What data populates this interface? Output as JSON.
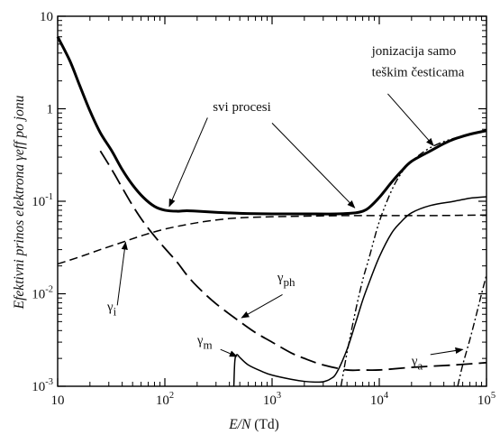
{
  "chart_data": {
    "type": "line",
    "title": "",
    "xlabel": {
      "main": "E/N",
      "unit": " (Td)"
    },
    "ylabel": "Efektivni prinos elektrona γeff po jonu",
    "xscale": "log",
    "yscale": "log",
    "xlim": [
      10,
      100000
    ],
    "ylim": [
      0.001,
      10
    ],
    "x_ticks": [
      {
        "value": 10,
        "base": "10",
        "exp": ""
      },
      {
        "value": 100,
        "base": "10",
        "exp": "2"
      },
      {
        "value": 1000,
        "base": "10",
        "exp": "3"
      },
      {
        "value": 10000,
        "base": "10",
        "exp": "4"
      },
      {
        "value": 100000,
        "base": "10",
        "exp": "5"
      }
    ],
    "y_ticks": [
      {
        "value": 10,
        "base": "10",
        "exp": ""
      },
      {
        "value": 1,
        "base": "1",
        "exp": ""
      },
      {
        "value": 0.1,
        "base": "10",
        "exp": "-1"
      },
      {
        "value": 0.01,
        "base": "10",
        "exp": "-2"
      },
      {
        "value": 0.001,
        "base": "10",
        "exp": "-3"
      }
    ],
    "series": [
      {
        "name": "svi procesi",
        "style": "solid-thick",
        "x": [
          10,
          13,
          16,
          20,
          25,
          32,
          40,
          50,
          63,
          80,
          100,
          130,
          160,
          200,
          300,
          500,
          1000,
          2000,
          4000,
          6000,
          7000,
          8000,
          10000,
          13000,
          16000,
          20000,
          30000,
          40000,
          50000,
          70000,
          100000
        ],
        "y": [
          6,
          3.3,
          1.8,
          0.95,
          0.55,
          0.35,
          0.22,
          0.15,
          0.11,
          0.088,
          0.08,
          0.078,
          0.079,
          0.078,
          0.076,
          0.074,
          0.073,
          0.073,
          0.073,
          0.075,
          0.078,
          0.085,
          0.11,
          0.16,
          0.21,
          0.27,
          0.35,
          0.42,
          0.47,
          0.53,
          0.58
        ]
      },
      {
        "name": "γph",
        "style": "long-dash",
        "x": [
          25,
          32,
          40,
          50,
          63,
          80,
          100,
          130,
          160,
          200,
          300,
          500,
          700,
          1000,
          1500,
          2000,
          3000,
          5000,
          7000,
          10000,
          20000,
          50000,
          100000
        ],
        "y": [
          0.35,
          0.22,
          0.14,
          0.09,
          0.06,
          0.042,
          0.031,
          0.022,
          0.016,
          0.012,
          0.0078,
          0.005,
          0.0038,
          0.003,
          0.0023,
          0.002,
          0.0017,
          0.0015,
          0.0015,
          0.0015,
          0.0016,
          0.0017,
          0.0018
        ]
      },
      {
        "name": "γi",
        "style": "dash",
        "x": [
          10,
          16,
          25,
          40,
          63,
          100,
          160,
          250,
          400,
          630,
          1000,
          2000,
          5000,
          10000,
          30000,
          100000
        ],
        "y": [
          0.021,
          0.025,
          0.03,
          0.036,
          0.043,
          0.05,
          0.056,
          0.061,
          0.065,
          0.067,
          0.068,
          0.069,
          0.07,
          0.07,
          0.07,
          0.071
        ]
      },
      {
        "name": "γm",
        "style": "solid-thin",
        "x": [
          440,
          450,
          470,
          500,
          600,
          800,
          1000,
          1500,
          2000,
          2500,
          3000,
          3500,
          4000,
          5000,
          6000,
          7000,
          8000,
          10000,
          13000,
          16000,
          20000,
          30000,
          50000,
          70000,
          100000
        ],
        "y": [
          0.00101,
          0.0019,
          0.0022,
          0.00205,
          0.0017,
          0.00145,
          0.00132,
          0.00119,
          0.00113,
          0.00111,
          0.00112,
          0.0012,
          0.0014,
          0.0025,
          0.0048,
          0.0085,
          0.013,
          0.025,
          0.045,
          0.06,
          0.075,
          0.09,
          0.1,
          0.108,
          0.112
        ]
      },
      {
        "name": "jonizacija samo teškim česticama",
        "style": "dash-dot-dot",
        "x": [
          4400,
          5000,
          6000,
          7000,
          8000,
          10000,
          13000,
          16000,
          20000,
          30000,
          50000,
          100000
        ],
        "y": [
          0.00101,
          0.0023,
          0.0065,
          0.014,
          0.024,
          0.06,
          0.13,
          0.2,
          0.27,
          0.38,
          0.48,
          0.57
        ]
      },
      {
        "name": "γa",
        "style": "dash-dot",
        "x": [
          54000,
          60000,
          70000,
          80000,
          90000,
          100000
        ],
        "y": [
          0.00101,
          0.0017,
          0.0032,
          0.0058,
          0.01,
          0.016
        ]
      }
    ],
    "annotations": [
      {
        "id": "svi",
        "text": "svi procesi",
        "at": [
          280,
          0.95
        ]
      },
      {
        "id": "jon1",
        "text": "jonizacija samo",
        "at": [
          8500,
          3.8
        ]
      },
      {
        "id": "jon2",
        "text": "teškim česticama",
        "at": [
          8500,
          2.25
        ]
      },
      {
        "id": "gph",
        "text": "γph",
        "at": [
          1120,
          0.0135
        ]
      },
      {
        "id": "gi",
        "text": "γi",
        "at": [
          29,
          0.0065
        ]
      },
      {
        "id": "gm",
        "text": "γm",
        "at": [
          200,
          0.00285
        ]
      },
      {
        "id": "ga",
        "text": "γa",
        "at": [
          20000,
          0.0017
        ]
      }
    ]
  }
}
